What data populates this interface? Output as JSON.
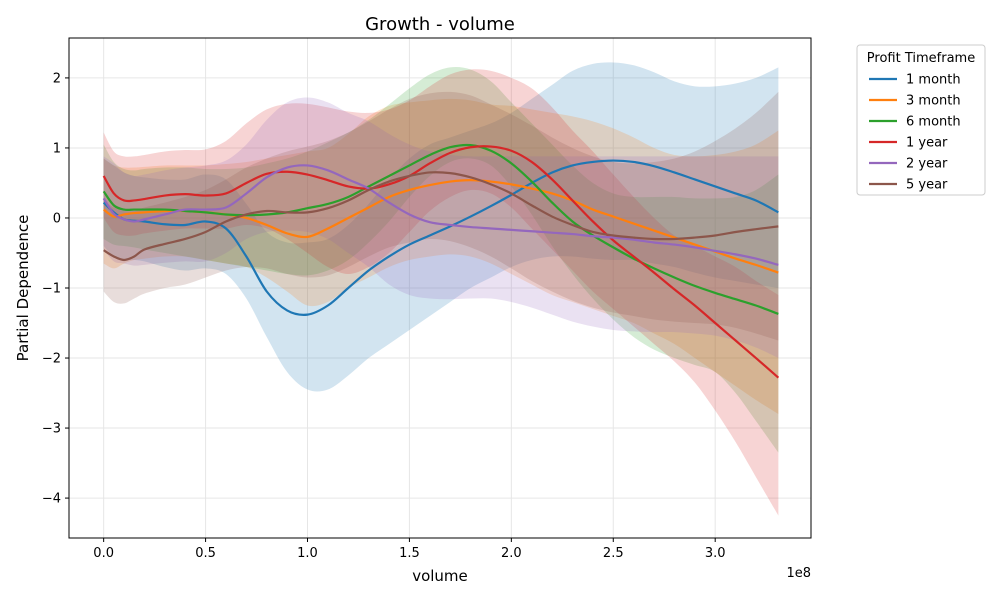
{
  "chart_data": {
    "type": "line",
    "title": "Growth - volume",
    "xlabel": "volume",
    "ylabel": "Partial Dependence",
    "x_offset_label": "1e8",
    "xlim": [
      -0.17,
      3.47
    ],
    "ylim": [
      -4.57,
      2.57
    ],
    "xticks": [
      0,
      0.5,
      1.0,
      1.5,
      2.0,
      2.5,
      3.0
    ],
    "xtick_labels": [
      "0.0",
      "0.5",
      "1.0",
      "1.5",
      "2.0",
      "2.5",
      "3.0"
    ],
    "yticks": [
      -4,
      -3,
      -2,
      -1,
      0,
      1,
      2
    ],
    "ytick_labels": [
      "−4",
      "−3",
      "−2",
      "−1",
      "0",
      "1",
      "2"
    ],
    "grid": true,
    "legend": {
      "title": "Profit Timeframe",
      "placement": "outside-right"
    },
    "x": [
      0,
      0.05,
      0.1,
      0.15,
      0.2,
      0.3,
      0.4,
      0.5,
      0.6,
      0.7,
      0.8,
      0.9,
      1.0,
      1.1,
      1.2,
      1.3,
      1.4,
      1.5,
      1.6,
      1.7,
      1.8,
      1.9,
      2.0,
      2.1,
      2.2,
      2.3,
      2.4,
      2.5,
      2.6,
      2.7,
      2.8,
      2.9,
      3.0,
      3.1,
      3.2,
      3.31
    ],
    "series": [
      {
        "name": "1 month",
        "color": "#1f77b4",
        "values": [
          0.22,
          0.08,
          -0.02,
          -0.04,
          -0.05,
          -0.09,
          -0.1,
          -0.05,
          -0.15,
          -0.55,
          -1.05,
          -1.32,
          -1.38,
          -1.25,
          -1.0,
          -0.75,
          -0.55,
          -0.38,
          -0.25,
          -0.12,
          0.02,
          0.17,
          0.33,
          0.5,
          0.65,
          0.75,
          0.8,
          0.82,
          0.8,
          0.74,
          0.65,
          0.55,
          0.45,
          0.35,
          0.25,
          0.08
        ],
        "lower": [
          -0.4,
          -0.55,
          -0.6,
          -0.6,
          -0.62,
          -0.7,
          -0.75,
          -0.72,
          -0.8,
          -1.15,
          -1.7,
          -2.2,
          -2.45,
          -2.45,
          -2.25,
          -2.0,
          -1.8,
          -1.6,
          -1.4,
          -1.2,
          -1.0,
          -0.85,
          -0.7,
          -0.6,
          -0.55,
          -0.55,
          -0.58,
          -0.6,
          -0.6,
          -0.65,
          -0.7,
          -0.78,
          -0.85,
          -0.9,
          -0.95,
          -1.0
        ],
        "upper": [
          0.85,
          0.75,
          0.65,
          0.6,
          0.58,
          0.55,
          0.55,
          0.62,
          0.55,
          0.2,
          -0.2,
          -0.35,
          -0.35,
          -0.3,
          -0.1,
          0.2,
          0.55,
          0.85,
          1.05,
          1.15,
          1.25,
          1.35,
          1.5,
          1.7,
          1.9,
          2.1,
          2.2,
          2.22,
          2.18,
          2.08,
          1.95,
          1.88,
          1.88,
          1.92,
          2.0,
          2.15
        ]
      },
      {
        "name": "3 month",
        "color": "#ff7f0e",
        "values": [
          0.12,
          0.02,
          0.05,
          0.07,
          0.08,
          0.1,
          0.1,
          0.08,
          0.05,
          0.0,
          -0.1,
          -0.22,
          -0.27,
          -0.15,
          0.0,
          0.15,
          0.3,
          0.4,
          0.47,
          0.52,
          0.54,
          0.52,
          0.48,
          0.42,
          0.35,
          0.25,
          0.12,
          0.02,
          -0.08,
          -0.18,
          -0.28,
          -0.38,
          -0.48,
          -0.58,
          -0.67,
          -0.78
        ],
        "lower": [
          -0.65,
          -0.72,
          -0.65,
          -0.6,
          -0.58,
          -0.55,
          -0.55,
          -0.6,
          -0.65,
          -0.7,
          -0.85,
          -1.05,
          -1.25,
          -1.2,
          -1.0,
          -0.85,
          -0.7,
          -0.6,
          -0.55,
          -0.52,
          -0.55,
          -0.65,
          -0.8,
          -0.95,
          -1.1,
          -1.2,
          -1.3,
          -1.4,
          -1.5,
          -1.65,
          -1.8,
          -2.0,
          -2.2,
          -2.4,
          -2.6,
          -2.8
        ],
        "upper": [
          0.85,
          0.75,
          0.72,
          0.72,
          0.73,
          0.75,
          0.75,
          0.75,
          0.77,
          0.8,
          0.85,
          0.9,
          0.95,
          1.0,
          1.2,
          1.45,
          1.6,
          1.65,
          1.68,
          1.7,
          1.68,
          1.62,
          1.6,
          1.55,
          1.5,
          1.45,
          1.38,
          1.28,
          1.15,
          1.0,
          0.9,
          0.88,
          0.9,
          0.95,
          1.05,
          1.25
        ]
      },
      {
        "name": "6 month",
        "color": "#2ca02c",
        "values": [
          0.38,
          0.18,
          0.12,
          0.12,
          0.12,
          0.12,
          0.1,
          0.08,
          0.05,
          0.04,
          0.05,
          0.08,
          0.14,
          0.2,
          0.3,
          0.45,
          0.6,
          0.75,
          0.9,
          1.01,
          1.04,
          0.96,
          0.78,
          0.52,
          0.22,
          -0.05,
          -0.25,
          -0.42,
          -0.58,
          -0.72,
          -0.85,
          -0.97,
          -1.07,
          -1.16,
          -1.25,
          -1.37
        ],
        "lower": [
          -0.3,
          -0.38,
          -0.4,
          -0.42,
          -0.45,
          -0.5,
          -0.55,
          -0.6,
          -0.65,
          -0.7,
          -0.75,
          -0.8,
          -0.82,
          -0.75,
          -0.6,
          -0.35,
          -0.05,
          0.3,
          0.6,
          0.8,
          0.85,
          0.75,
          0.45,
          0.05,
          -0.4,
          -0.8,
          -1.15,
          -1.45,
          -1.7,
          -1.88,
          -2.0,
          -2.1,
          -2.2,
          -2.5,
          -2.9,
          -3.35
        ],
        "upper": [
          1.05,
          0.8,
          0.7,
          0.68,
          0.7,
          0.72,
          0.72,
          0.7,
          0.7,
          0.72,
          0.78,
          0.85,
          0.95,
          1.08,
          1.22,
          1.4,
          1.62,
          1.85,
          2.05,
          2.15,
          2.12,
          1.95,
          1.65,
          1.35,
          1.05,
          0.75,
          0.5,
          0.35,
          0.3,
          0.3,
          0.3,
          0.28,
          0.28,
          0.3,
          0.4,
          0.62
        ]
      },
      {
        "name": "1 year",
        "color": "#d62728",
        "values": [
          0.6,
          0.35,
          0.25,
          0.25,
          0.27,
          0.32,
          0.34,
          0.32,
          0.35,
          0.5,
          0.63,
          0.66,
          0.62,
          0.54,
          0.45,
          0.42,
          0.48,
          0.6,
          0.78,
          0.93,
          1.01,
          1.02,
          0.96,
          0.8,
          0.55,
          0.25,
          -0.05,
          -0.32,
          -0.55,
          -0.78,
          -1.02,
          -1.25,
          -1.5,
          -1.75,
          -2.0,
          -2.28
        ],
        "lower": [
          0.0,
          -0.2,
          -0.25,
          -0.25,
          -0.22,
          -0.18,
          -0.15,
          -0.15,
          -0.15,
          -0.1,
          -0.15,
          -0.3,
          -0.5,
          -0.7,
          -0.8,
          -0.7,
          -0.5,
          -0.2,
          0.1,
          0.3,
          0.4,
          0.35,
          0.15,
          -0.15,
          -0.45,
          -0.75,
          -1.05,
          -1.3,
          -1.55,
          -1.8,
          -2.05,
          -2.35,
          -2.75,
          -3.2,
          -3.7,
          -4.25
        ],
        "upper": [
          1.22,
          0.95,
          0.88,
          0.88,
          0.9,
          0.95,
          0.97,
          0.98,
          1.1,
          1.35,
          1.55,
          1.63,
          1.63,
          1.58,
          1.52,
          1.5,
          1.55,
          1.68,
          1.88,
          2.05,
          2.12,
          2.1,
          2.0,
          1.85,
          1.58,
          1.25,
          0.95,
          0.62,
          0.3,
          0.0,
          -0.25,
          -0.4,
          -0.55,
          -0.7,
          -0.9,
          -1.1
        ]
      },
      {
        "name": "2 year",
        "color": "#9467bd",
        "values": [
          0.28,
          0.06,
          -0.02,
          -0.05,
          -0.02,
          0.05,
          0.12,
          0.12,
          0.15,
          0.35,
          0.58,
          0.72,
          0.75,
          0.68,
          0.55,
          0.42,
          0.22,
          0.05,
          -0.06,
          -0.1,
          -0.13,
          -0.15,
          -0.17,
          -0.19,
          -0.21,
          -0.23,
          -0.26,
          -0.28,
          -0.31,
          -0.35,
          -0.38,
          -0.42,
          -0.47,
          -0.52,
          -0.58,
          -0.67
        ],
        "lower": [
          -0.45,
          -0.62,
          -0.65,
          -0.68,
          -0.67,
          -0.64,
          -0.62,
          -0.62,
          -0.5,
          -0.3,
          -0.2,
          -0.18,
          -0.2,
          -0.3,
          -0.5,
          -0.7,
          -0.95,
          -1.1,
          -1.15,
          -1.16,
          -1.15,
          -1.15,
          -1.2,
          -1.28,
          -1.38,
          -1.48,
          -1.55,
          -1.6,
          -1.62,
          -1.63,
          -1.63,
          -1.65,
          -1.68,
          -1.75,
          -1.85,
          -2.0
        ],
        "upper": [
          0.88,
          0.78,
          0.65,
          0.6,
          0.62,
          0.68,
          0.72,
          0.75,
          0.82,
          1.05,
          1.4,
          1.65,
          1.72,
          1.65,
          1.5,
          1.38,
          1.2,
          1.05,
          0.95,
          0.9,
          0.88,
          0.88,
          0.88,
          0.88,
          0.88,
          0.88,
          0.88,
          0.88,
          0.88,
          0.88,
          0.88,
          0.88,
          0.88,
          0.88,
          0.88,
          0.88
        ]
      },
      {
        "name": "5 year",
        "color": "#8c564b",
        "values": [
          -0.46,
          -0.55,
          -0.6,
          -0.55,
          -0.45,
          -0.37,
          -0.3,
          -0.2,
          -0.05,
          0.05,
          0.1,
          0.08,
          0.08,
          0.14,
          0.25,
          0.4,
          0.52,
          0.6,
          0.65,
          0.64,
          0.58,
          0.48,
          0.35,
          0.18,
          0.02,
          -0.1,
          -0.2,
          -0.25,
          -0.28,
          -0.3,
          -0.3,
          -0.28,
          -0.25,
          -0.2,
          -0.16,
          -0.12
        ],
        "lower": [
          -1.05,
          -1.2,
          -1.22,
          -1.15,
          -1.08,
          -1.0,
          -0.95,
          -0.85,
          -0.75,
          -0.7,
          -0.72,
          -0.8,
          -0.85,
          -0.82,
          -0.7,
          -0.55,
          -0.42,
          -0.35,
          -0.3,
          -0.33,
          -0.42,
          -0.55,
          -0.72,
          -0.9,
          -1.05,
          -1.18,
          -1.28,
          -1.35,
          -1.4,
          -1.45,
          -1.48,
          -1.5,
          -1.52,
          -1.57,
          -1.65,
          -1.75
        ],
        "upper": [
          0.25,
          0.15,
          0.1,
          0.1,
          0.15,
          0.22,
          0.3,
          0.4,
          0.55,
          0.72,
          0.85,
          0.95,
          1.02,
          1.1,
          1.22,
          1.38,
          1.55,
          1.7,
          1.78,
          1.8,
          1.75,
          1.62,
          1.48,
          1.32,
          1.15,
          1.0,
          0.88,
          0.8,
          0.78,
          0.8,
          0.85,
          0.95,
          1.1,
          1.28,
          1.5,
          1.8
        ]
      }
    ]
  }
}
